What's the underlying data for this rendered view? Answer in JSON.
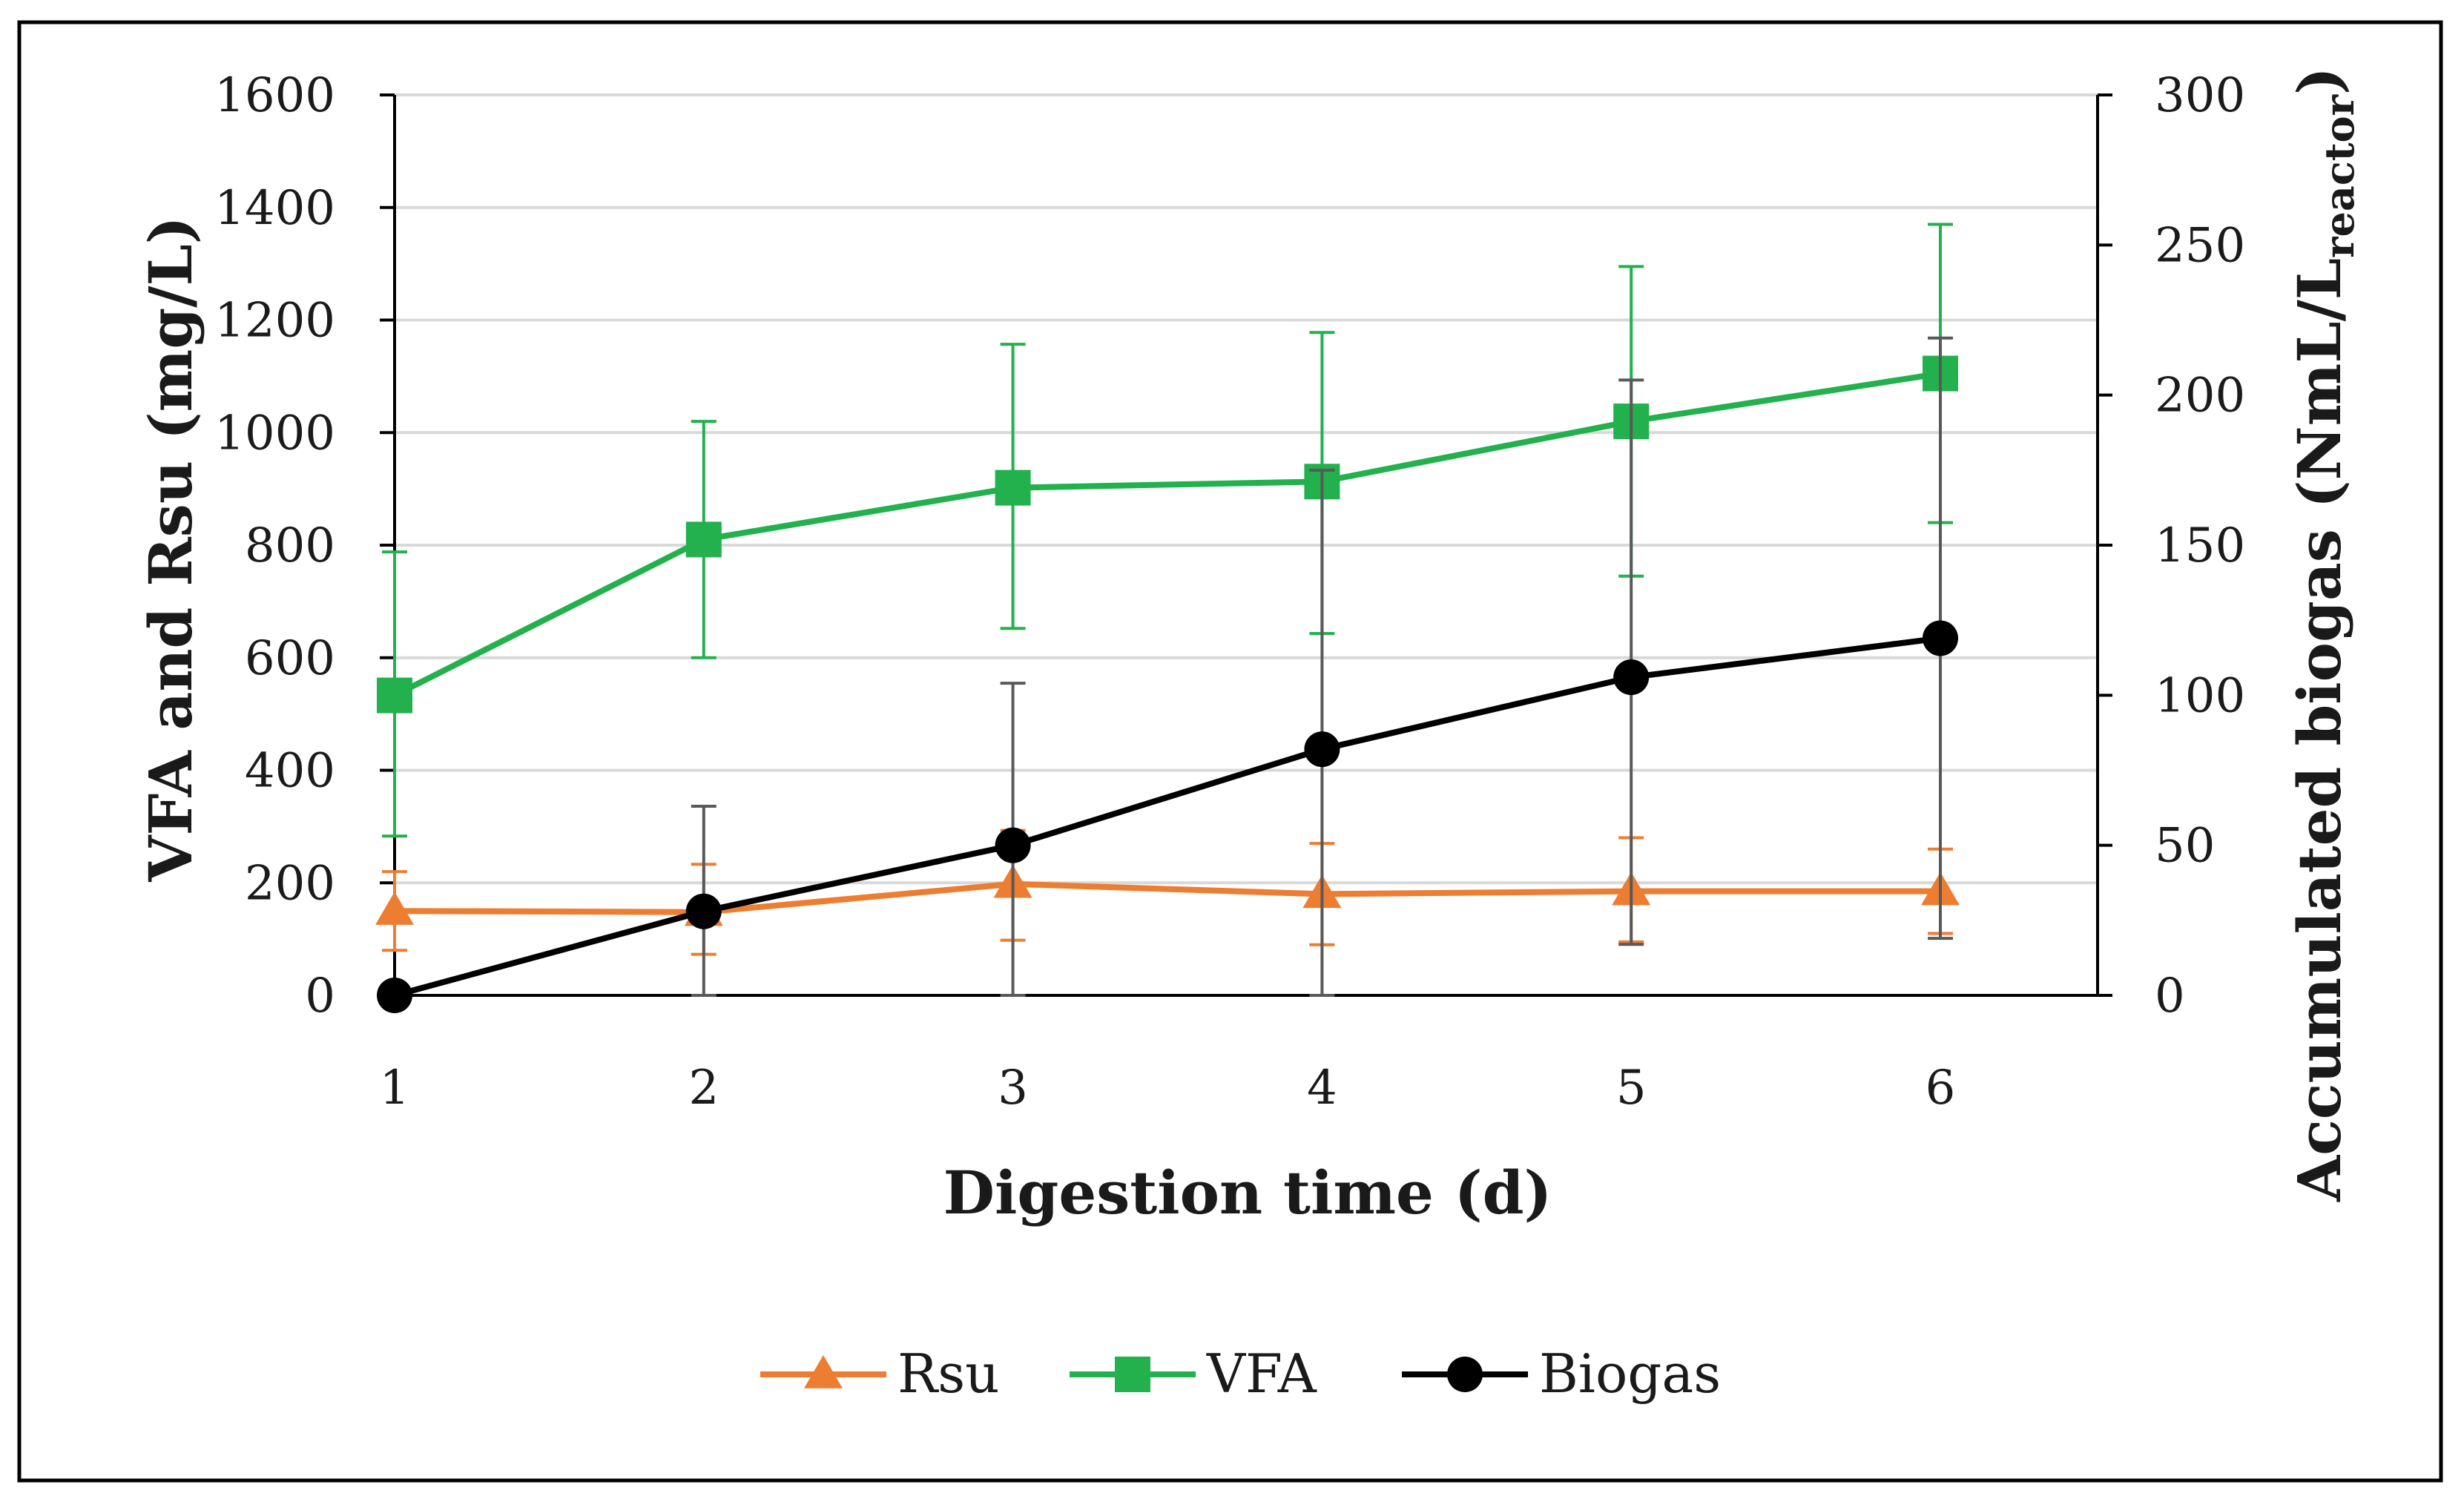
{
  "chart_data": {
    "type": "line",
    "title": "",
    "xlabel": "Digestion time (d)",
    "ylabel": "VFA and Rsu (mg/L)",
    "y2label_main": "Accumulated biogas (NmL/L",
    "y2label_sub": "reactor",
    "y2label_end": ")",
    "x": [
      1,
      2,
      3,
      4,
      5,
      6
    ],
    "x_tick_labels": [
      "1",
      "2",
      "3",
      "4",
      "5",
      "6"
    ],
    "ylim": [
      0,
      1600
    ],
    "y_ticks": [
      0,
      200,
      400,
      600,
      800,
      1000,
      1200,
      1400,
      1600
    ],
    "y2lim": [
      0,
      300
    ],
    "y2_ticks": [
      0,
      50,
      100,
      150,
      200,
      250,
      300
    ],
    "grid": true,
    "legend_position": "bottom",
    "series": [
      {
        "name": "Rsu",
        "axis": "left",
        "marker": "triangle",
        "color": "#ed7d31",
        "values": [
          150,
          148,
          198,
          180,
          185,
          185
        ],
        "error_low": [
          70,
          75,
          100,
          90,
          90,
          75
        ],
        "error_high": [
          70,
          85,
          95,
          90,
          95,
          75
        ]
      },
      {
        "name": "VFA",
        "axis": "left",
        "marker": "square",
        "color": "#22b14c",
        "values": [
          533,
          810,
          902,
          913,
          1020,
          1105
        ],
        "error_low": [
          250,
          210,
          250,
          270,
          275,
          265
        ],
        "error_high": [
          255,
          210,
          255,
          265,
          275,
          265
        ]
      },
      {
        "name": "Biogas",
        "axis": "right",
        "marker": "circle",
        "color": "#000000",
        "error_color": "#595959",
        "values": [
          0,
          28,
          50,
          82,
          106,
          119
        ],
        "error_low": [
          0,
          28,
          50,
          82,
          89,
          100
        ],
        "error_high": [
          0,
          35,
          54,
          93,
          99,
          100
        ]
      }
    ]
  }
}
